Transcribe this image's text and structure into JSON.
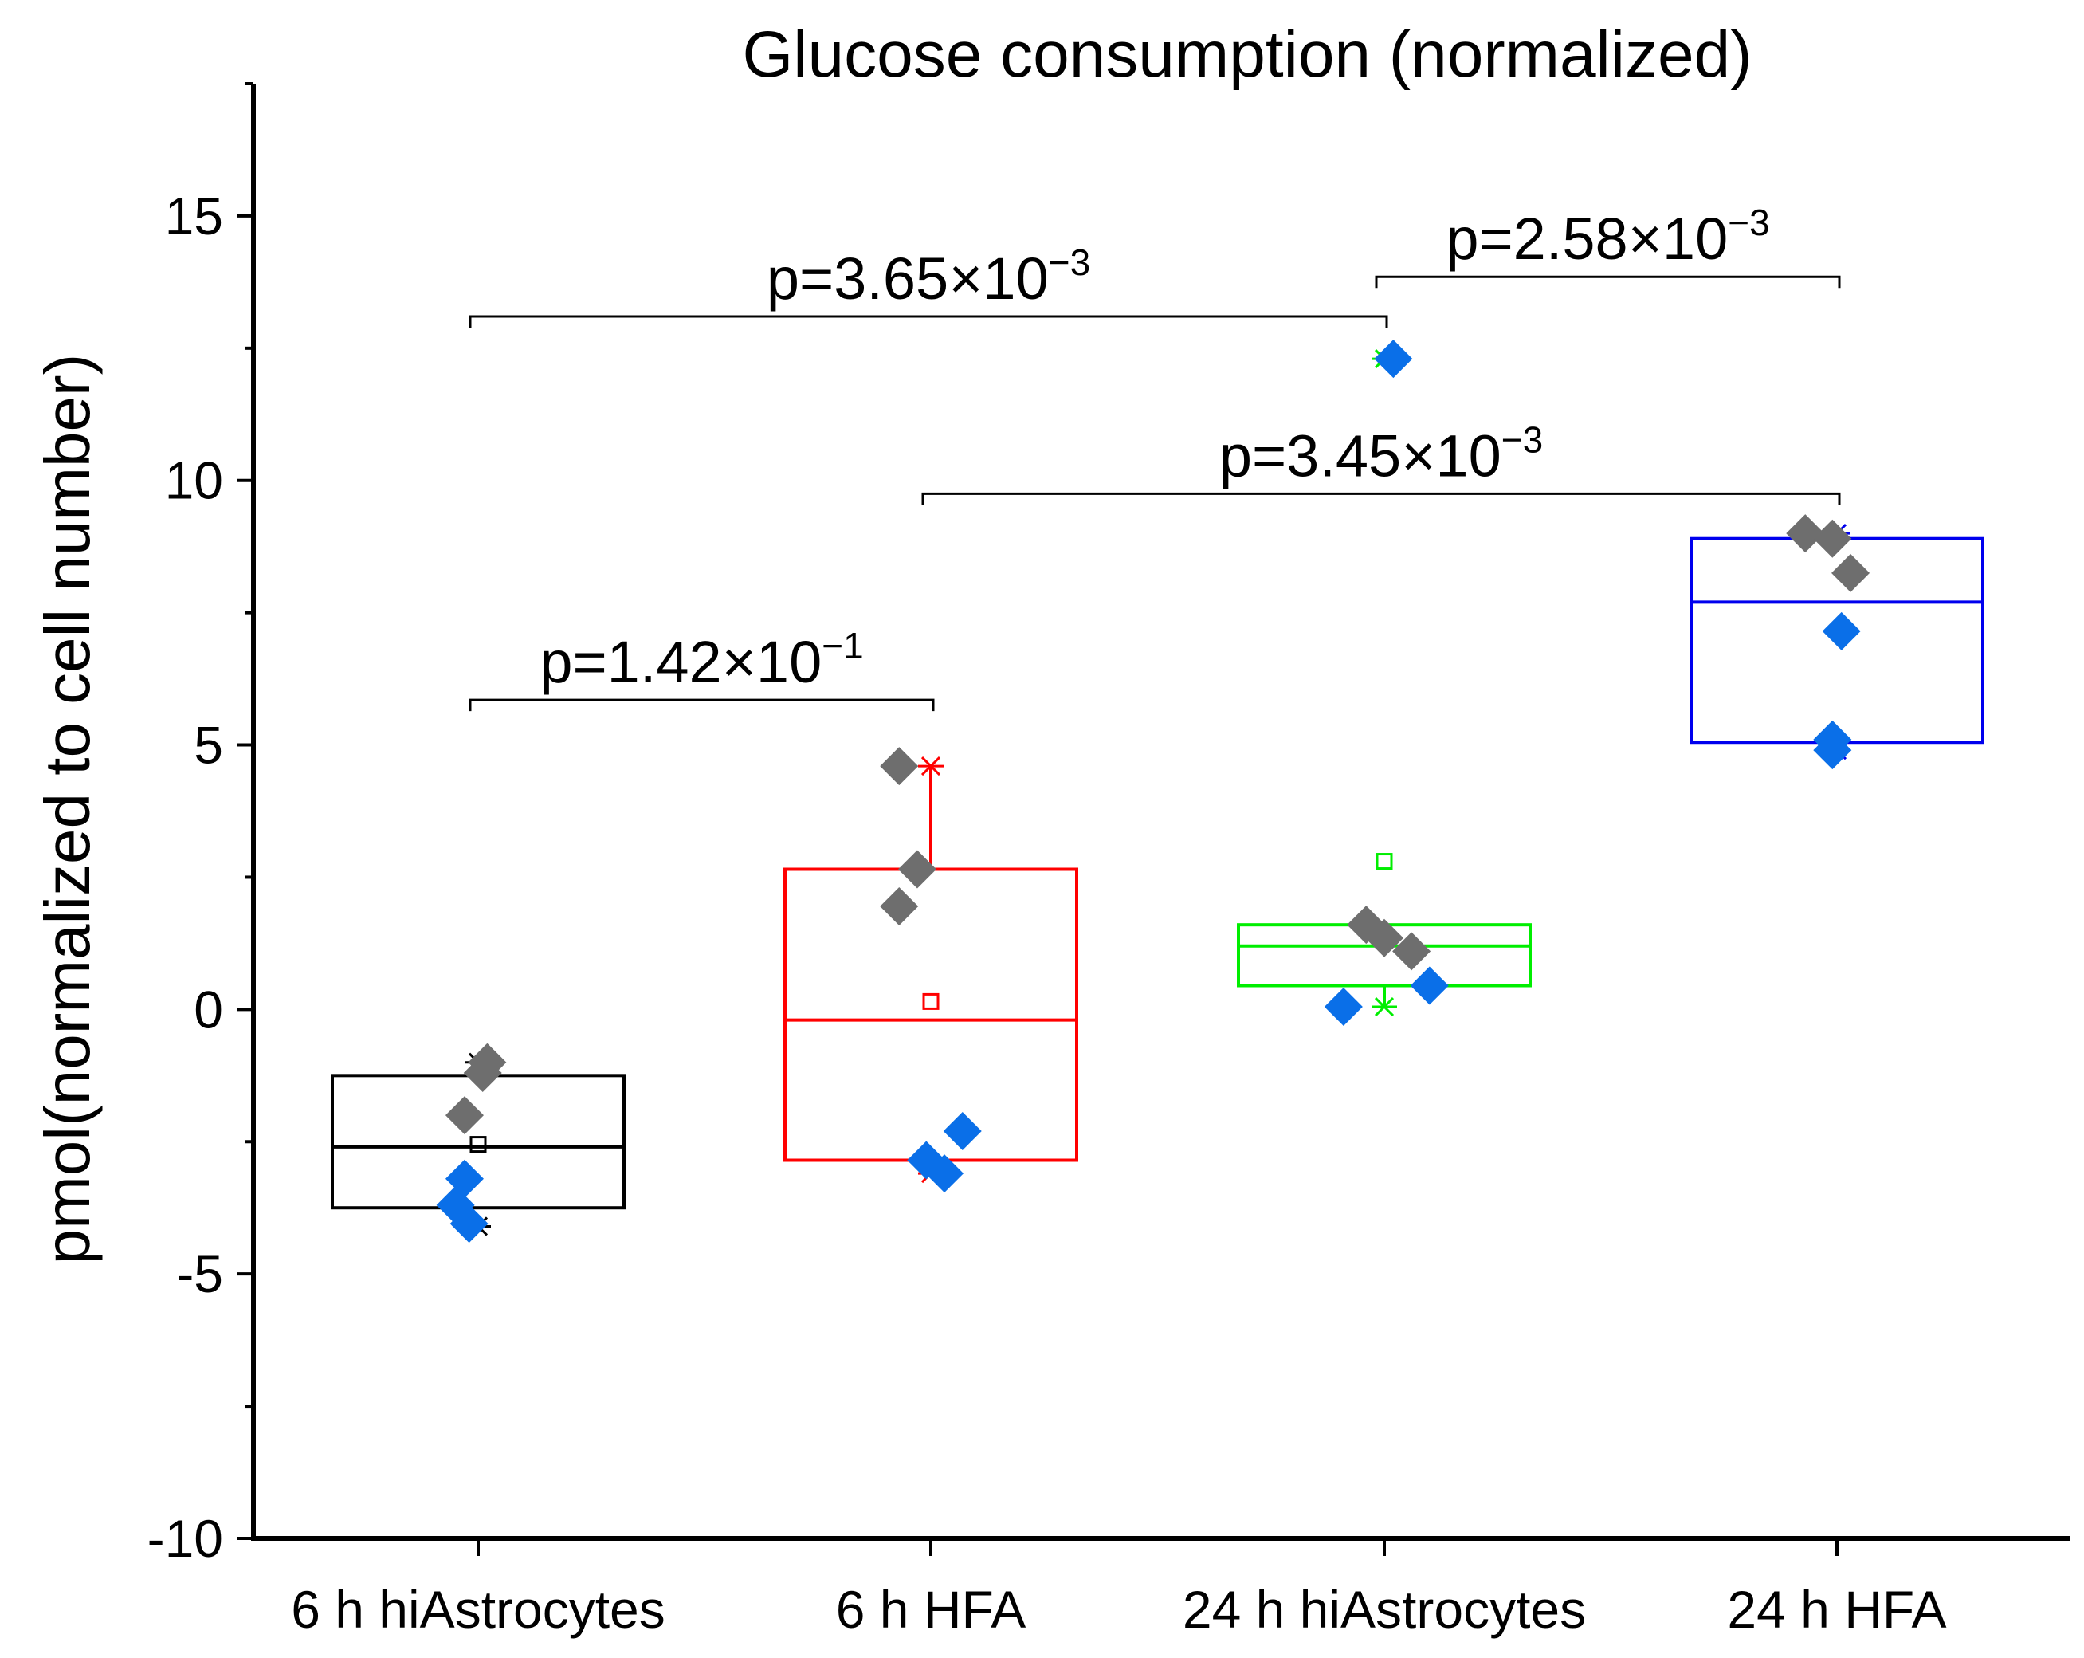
{
  "chart_data": {
    "type": "box",
    "title": "Glucose consumption (normalized)",
    "xlabel": "",
    "ylabel": "pmol(normalized to cell number)",
    "ylim": [
      -10,
      17.5
    ],
    "yticks": [
      -10,
      -5,
      0,
      5,
      10,
      15
    ],
    "ytick_labels": [
      "-10",
      "-5",
      "0",
      "5",
      "10",
      "15"
    ],
    "grid": false,
    "categories": [
      "6 h hiAstrocytes",
      "6 h HFA",
      "24 h hiAstrocytes",
      "24 h HFA"
    ],
    "boxes": [
      {
        "category": "6 h hiAstrocytes",
        "color": "#000000",
        "q1": -3.75,
        "median": -2.6,
        "q3": -1.25,
        "mean": -2.55,
        "whisker_low": -3.75,
        "whisker_high": -1.25,
        "max_marker": -1.0,
        "min_marker": -4.1
      },
      {
        "category": "6 h HFA",
        "color": "#ff0000",
        "q1": -2.85,
        "median": -0.2,
        "q3": 2.65,
        "mean": 0.15,
        "whisker_low": -2.85,
        "whisker_high": 4.6,
        "max_marker": 4.6,
        "min_marker": -3.1
      },
      {
        "category": "24 h hiAstrocytes",
        "color": "#00ee00",
        "q1": 0.45,
        "median": 1.2,
        "q3": 1.6,
        "mean": 2.8,
        "whisker_low": 0.05,
        "whisker_high": 1.6,
        "max_marker": 12.3,
        "min_marker": 0.05
      },
      {
        "category": "24 h HFA",
        "color": "#0000ee",
        "q1": 5.05,
        "median": 7.7,
        "q3": 8.9,
        "mean": null,
        "whisker_low": 5.05,
        "whisker_high": 8.9,
        "max_marker": 9.0,
        "min_marker": 4.9
      }
    ],
    "points": [
      {
        "category": "6 h hiAstrocytes",
        "x_offset": 0.02,
        "y": -1.0,
        "color": "#6e6e6e"
      },
      {
        "category": "6 h hiAstrocytes",
        "x_offset": 0.01,
        "y": -1.2,
        "color": "#6e6e6e"
      },
      {
        "category": "6 h hiAstrocytes",
        "x_offset": -0.03,
        "y": -2.0,
        "color": "#6e6e6e"
      },
      {
        "category": "6 h hiAstrocytes",
        "x_offset": -0.03,
        "y": -3.2,
        "color": "#0a6fe8"
      },
      {
        "category": "6 h hiAstrocytes",
        "x_offset": -0.05,
        "y": -3.7,
        "color": "#0a6fe8"
      },
      {
        "category": "6 h hiAstrocytes",
        "x_offset": -0.02,
        "y": -4.05,
        "color": "#0a6fe8"
      },
      {
        "category": "6 h HFA",
        "x_offset": -0.07,
        "y": 4.6,
        "color": "#6e6e6e"
      },
      {
        "category": "6 h HFA",
        "x_offset": -0.03,
        "y": 2.65,
        "color": "#6e6e6e"
      },
      {
        "category": "6 h HFA",
        "x_offset": -0.07,
        "y": 1.95,
        "color": "#6e6e6e"
      },
      {
        "category": "6 h HFA",
        "x_offset": 0.07,
        "y": -2.3,
        "color": "#0a6fe8"
      },
      {
        "category": "6 h HFA",
        "x_offset": -0.01,
        "y": -2.85,
        "color": "#0a6fe8"
      },
      {
        "category": "6 h HFA",
        "x_offset": 0.03,
        "y": -3.1,
        "color": "#0a6fe8"
      },
      {
        "category": "24 h hiAstrocytes",
        "x_offset": 0.02,
        "y": 12.3,
        "color": "#0a6fe8"
      },
      {
        "category": "24 h hiAstrocytes",
        "x_offset": -0.04,
        "y": 1.6,
        "color": "#6e6e6e"
      },
      {
        "category": "24 h hiAstrocytes",
        "x_offset": 0.0,
        "y": 1.35,
        "color": "#6e6e6e"
      },
      {
        "category": "24 h hiAstrocytes",
        "x_offset": 0.06,
        "y": 1.1,
        "color": "#6e6e6e"
      },
      {
        "category": "24 h hiAstrocytes",
        "x_offset": 0.1,
        "y": 0.45,
        "color": "#0a6fe8"
      },
      {
        "category": "24 h hiAstrocytes",
        "x_offset": -0.09,
        "y": 0.05,
        "color": "#0a6fe8"
      },
      {
        "category": "24 h HFA",
        "x_offset": -0.07,
        "y": 9.0,
        "color": "#6e6e6e"
      },
      {
        "category": "24 h HFA",
        "x_offset": -0.01,
        "y": 8.9,
        "color": "#6e6e6e"
      },
      {
        "category": "24 h HFA",
        "x_offset": 0.03,
        "y": 8.25,
        "color": "#6e6e6e"
      },
      {
        "category": "24 h HFA",
        "x_offset": 0.01,
        "y": 7.15,
        "color": "#0a6fe8"
      },
      {
        "category": "24 h HFA",
        "x_offset": -0.01,
        "y": 5.1,
        "color": "#0a6fe8"
      },
      {
        "category": "24 h HFA",
        "x_offset": -0.01,
        "y": 4.9,
        "color": "#0a6fe8"
      }
    ],
    "annotations": [
      {
        "from": "6 h hiAstrocytes",
        "to": "6 h HFA",
        "y": 5.85,
        "base": "p=1.42×10",
        "exponent": "−1"
      },
      {
        "from": "6 h hiAstrocytes",
        "to": "24 h hiAstrocytes",
        "y": 13.1,
        "base": "p=3.65×10",
        "exponent": "−3"
      },
      {
        "from": "6 h HFA",
        "to": "24 h HFA",
        "y": 9.75,
        "base": "p=3.45×10",
        "exponent": "−3"
      },
      {
        "from": "24 h hiAstrocytes",
        "to": "24 h HFA",
        "y": 13.85,
        "base": "p=2.58×10",
        "exponent": "−3"
      }
    ]
  }
}
